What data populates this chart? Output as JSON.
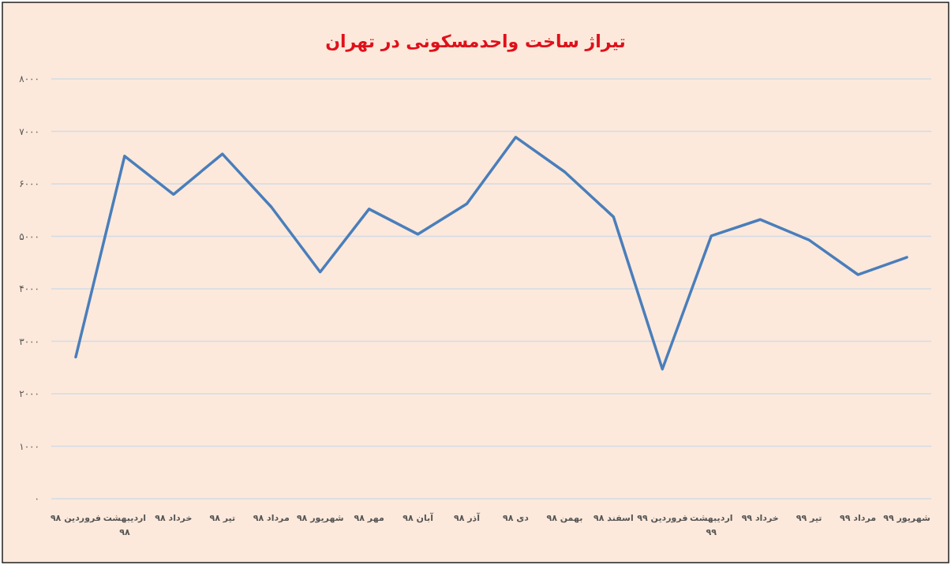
{
  "chart_data": {
    "type": "line",
    "title": "تیراژ ساخت واحدمسکونی در تهران",
    "categories": [
      "فروردین ۹۸",
      "اردیبهشت ۹۸",
      "خرداد ۹۸",
      "تیر ۹۸",
      "مرداد ۹۸",
      "شهریور ۹۸",
      "مهر ۹۸",
      "آبان ۹۸",
      "آذر ۹۸",
      "دی ۹۸",
      "بهمن ۹۸",
      "اسفند ۹۸",
      "فروردین ۹۹",
      "اردیبهشت ۹۹",
      "خرداد ۹۹",
      "تیر ۹۹",
      "مرداد ۹۹",
      "شهریور ۹۹"
    ],
    "series": [
      {
        "color": "#4a7ebb",
        "values": [
          2700,
          6530,
          5800,
          6570,
          5560,
          4320,
          5520,
          5040,
          5620,
          6890,
          6230,
          5370,
          2470,
          5010,
          5320,
          4930,
          4270,
          4600
        ]
      }
    ],
    "ylim": [
      0,
      8000
    ],
    "yticks": [
      {
        "value": 0,
        "label": "۰"
      },
      {
        "value": 1000,
        "label": "۱۰۰۰"
      },
      {
        "value": 2000,
        "label": "۲۰۰۰"
      },
      {
        "value": 3000,
        "label": "۳۰۰۰"
      },
      {
        "value": 4000,
        "label": "۴۰۰۰"
      },
      {
        "value": 5000,
        "label": "۵۰۰۰"
      },
      {
        "value": 6000,
        "label": "۶۰۰۰"
      },
      {
        "value": 7000,
        "label": "۷۰۰۰"
      },
      {
        "value": 8000,
        "label": "۸۰۰۰"
      }
    ],
    "grid": "y",
    "marker": "none",
    "line_style": "solid"
  }
}
